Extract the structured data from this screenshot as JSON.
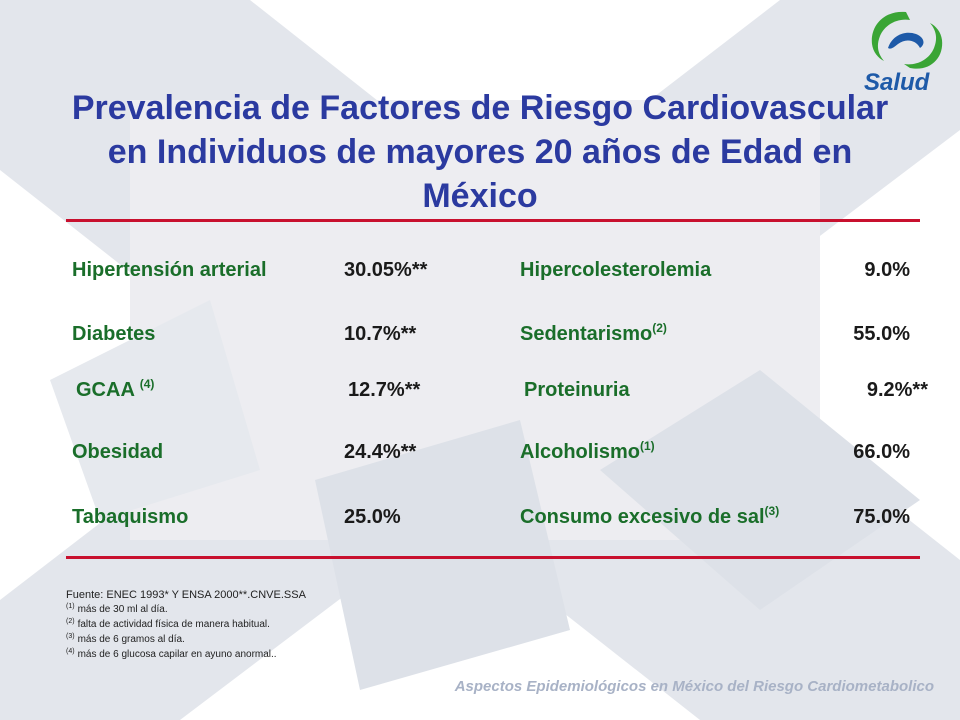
{
  "logo": {
    "text": "Salud",
    "colors": {
      "green": "#3aa535",
      "blue": "#1e5aa8"
    }
  },
  "title": {
    "line1": "Prevalencia de Factores de Riesgo Cardiovascular",
    "line2": "en Individuos de mayores 20 años de Edad en",
    "line3": "México"
  },
  "factors": {
    "left": [
      {
        "label": "Hipertensión arterial",
        "sup": "",
        "value": "30.05%**"
      },
      {
        "label": "Diabetes",
        "sup": "",
        "value": "10.7%**"
      },
      {
        "label": "GCAA ",
        "sup": "(4)",
        "value": "12.7%**"
      },
      {
        "label": "Obesidad",
        "sup": "",
        "value": "24.4%**"
      },
      {
        "label": "Tabaquismo",
        "sup": "",
        "value": "25.0%"
      }
    ],
    "right": [
      {
        "label": "Hipercolesterolemia",
        "sup": "",
        "value": "9.0%"
      },
      {
        "label": "Sedentarismo",
        "sup": "(2)",
        "value": "55.0%"
      },
      {
        "label": "Proteinuria",
        "sup": "",
        "value": "9.2%**"
      },
      {
        "label": "Alcoholismo",
        "sup": "(1)",
        "value": "66.0%"
      },
      {
        "label": "Consumo excesivo de sal",
        "sup": "(3)",
        "value": "75.0%"
      }
    ]
  },
  "notes": {
    "source": "Fuente: ENEC 1993* Y ENSA 2000**.CNVE.SSA",
    "items": [
      {
        "marker": "(1)",
        "text": "más de 30 ml al día."
      },
      {
        "marker": "(2)",
        "text": "falta de actividad física de manera habitual."
      },
      {
        "marker": "(3)",
        "text": "más de 6 gramos al día."
      },
      {
        "marker": "(4)",
        "text": "más de 6 glucosa capilar en ayuno anormal.."
      }
    ]
  },
  "footer": "Aspectos Epidemiológicos en México del Riesgo Cardiometabolico",
  "colors": {
    "title": "#2b3aa0",
    "label": "#1a6e2a",
    "rule": "#c8102e",
    "footer": "#a8b2c6"
  }
}
